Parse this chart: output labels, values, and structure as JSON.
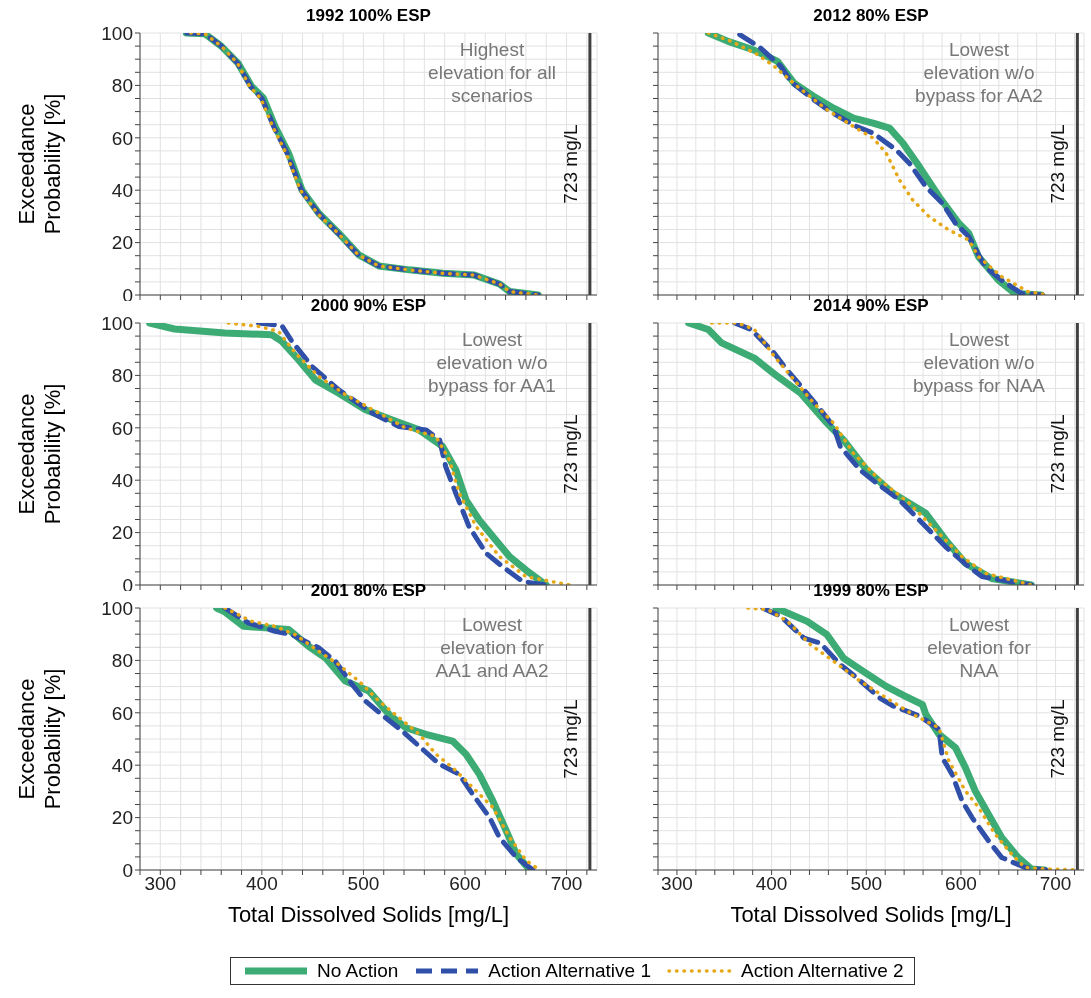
{
  "chart_data": [
    {
      "type": "line",
      "title": "1992 100% ESP",
      "ylabel": "Exceedance Probability [%]",
      "xlim": [
        280,
        730
      ],
      "ylim": [
        0,
        100
      ],
      "tick_labels": "y",
      "grid": true,
      "xticks": [
        {
          "value": 280,
          "label": null
        },
        300,
        {
          "value": 320,
          "label": null
        },
        {
          "value": 340,
          "label": null
        },
        {
          "value": 360,
          "label": null
        },
        {
          "value": 380,
          "label": null
        },
        400,
        {
          "value": 420,
          "label": null
        },
        {
          "value": 440,
          "label": null
        },
        {
          "value": 460,
          "label": null
        },
        {
          "value": 480,
          "label": null
        },
        500,
        {
          "value": 520,
          "label": null
        },
        {
          "value": 540,
          "label": null
        },
        {
          "value": 560,
          "label": null
        },
        {
          "value": 580,
          "label": null
        },
        600,
        {
          "value": 620,
          "label": null
        },
        {
          "value": 640,
          "label": null
        },
        {
          "value": 660,
          "label": null
        },
        {
          "value": 680,
          "label": null
        },
        700,
        {
          "value": 720,
          "label": null
        }
      ],
      "yticks": [
        0,
        {
          "value": 5,
          "label": null
        },
        {
          "value": 10,
          "label": null
        },
        {
          "value": 15,
          "label": null
        },
        20,
        {
          "value": 25,
          "label": null
        },
        {
          "value": 30,
          "label": null
        },
        {
          "value": 35,
          "label": null
        },
        40,
        {
          "value": 45,
          "label": null
        },
        {
          "value": 50,
          "label": null
        },
        {
          "value": 55,
          "label": null
        },
        60,
        {
          "value": 65,
          "label": null
        },
        {
          "value": 70,
          "label": null
        },
        {
          "value": 75,
          "label": null
        },
        80,
        {
          "value": 85,
          "label": null
        },
        {
          "value": 90,
          "label": null
        },
        {
          "value": 95,
          "label": null
        },
        100
      ],
      "annotations": [
        "Highest elevation for all scenarios"
      ],
      "ref_lines": [
        {
          "axis": "x",
          "value": 723,
          "label": "723 mg/L",
          "color": "#404040"
        }
      ],
      "series": [
        {
          "color": "#3dab74",
          "line_style": "solid",
          "x": [
            325.7,
            343.8,
            360,
            376.5,
            390,
            401.5,
            413,
            426.3,
            439.5,
            456,
            475.7,
            495.5,
            515.3,
            545,
            578,
            609.3,
            634,
            644,
            672
          ],
          "values": [
            100,
            99.7,
            95,
            88.5,
            79.6,
            75.2,
            64.3,
            54.1,
            40.1,
            31.2,
            23.6,
            15.3,
            11.1,
            9.6,
            8.3,
            7.6,
            4.2,
            1.3,
            0
          ]
        },
        {
          "color": "#2f4fa8",
          "line_style": "dashed",
          "x": [
            326,
            344,
            360,
            376,
            389,
            400,
            412,
            425,
            439,
            456,
            475,
            495,
            515,
            545,
            578,
            609,
            634,
            644,
            672
          ],
          "values": [
            100,
            99.7,
            95,
            88.5,
            79.6,
            75,
            64,
            54,
            40,
            31,
            23.6,
            15.3,
            11.1,
            9.6,
            8.3,
            7.6,
            4.2,
            1.3,
            0
          ]
        },
        {
          "color": "#e6a817",
          "line_style": "dotted",
          "x": [
            330,
            344,
            360,
            376,
            388,
            399,
            411,
            424,
            438,
            455,
            475,
            495,
            515,
            545,
            578,
            609,
            634,
            644,
            672
          ],
          "values": [
            100,
            99.7,
            95,
            88.5,
            79.6,
            75,
            64,
            54,
            40,
            31,
            23.6,
            15.3,
            11.1,
            9.6,
            8.3,
            7.6,
            4.2,
            1.3,
            0
          ]
        }
      ]
    },
    {
      "type": "line",
      "title": "2012 80% ESP",
      "xlim": [
        280,
        730
      ],
      "ylim": [
        0,
        100
      ],
      "tick_labels": false,
      "grid": true,
      "xticks": [
        {
          "value": 280,
          "label": null
        },
        300,
        {
          "value": 320,
          "label": null
        },
        {
          "value": 340,
          "label": null
        },
        {
          "value": 360,
          "label": null
        },
        {
          "value": 380,
          "label": null
        },
        400,
        {
          "value": 420,
          "label": null
        },
        {
          "value": 440,
          "label": null
        },
        {
          "value": 460,
          "label": null
        },
        {
          "value": 480,
          "label": null
        },
        500,
        {
          "value": 520,
          "label": null
        },
        {
          "value": 540,
          "label": null
        },
        {
          "value": 560,
          "label": null
        },
        {
          "value": 580,
          "label": null
        },
        600,
        {
          "value": 620,
          "label": null
        },
        {
          "value": 640,
          "label": null
        },
        {
          "value": 660,
          "label": null
        },
        {
          "value": 680,
          "label": null
        },
        700,
        {
          "value": 720,
          "label": null
        }
      ],
      "yticks": [
        0,
        {
          "value": 5,
          "label": null
        },
        {
          "value": 10,
          "label": null
        },
        {
          "value": 15,
          "label": null
        },
        20,
        {
          "value": 25,
          "label": null
        },
        {
          "value": 30,
          "label": null
        },
        {
          "value": 35,
          "label": null
        },
        40,
        {
          "value": 45,
          "label": null
        },
        {
          "value": 50,
          "label": null
        },
        {
          "value": 55,
          "label": null
        },
        60,
        {
          "value": 65,
          "label": null
        },
        {
          "value": 70,
          "label": null
        },
        {
          "value": 75,
          "label": null
        },
        80,
        {
          "value": 85,
          "label": null
        },
        {
          "value": 90,
          "label": null
        },
        {
          "value": 95,
          "label": null
        },
        100
      ],
      "annotations": [
        "Lowest elevation w/o bypass for AA2"
      ],
      "ref_lines": [
        {
          "axis": "x",
          "value": 723,
          "label": "723 mg/L",
          "color": "#404040"
        }
      ],
      "series": [
        {
          "color": "#3dab74",
          "line_style": "solid",
          "x": [
            333.2,
            354.1,
            382,
            406.3,
            423.7,
            444.6,
            465.5,
            486.4,
            507.2,
            524.6,
            538.6,
            556,
            576.8,
            597.7,
            608.2,
            618.6,
            639.5,
            656.9,
            684.7
          ],
          "values": [
            100,
            96.8,
            93.4,
            89.2,
            80.9,
            75.8,
            71.3,
            67.5,
            65.6,
            63.7,
            58,
            49,
            37.6,
            27.4,
            23.6,
            14.6,
            5.7,
            0.6,
            0
          ]
        },
        {
          "color": "#2f4fa8",
          "line_style": "dashed",
          "x": [
            366.3,
            387.2,
            409.8,
            420.2,
            444.6,
            462,
            489.8,
            507.2,
            531.6,
            545.5,
            562.9,
            580.3,
            594.2,
            608.2,
            625.6,
            643,
            663.8,
            686.5
          ],
          "values": [
            99.4,
            94.6,
            87.3,
            81.5,
            74.5,
            70,
            64.3,
            61.8,
            55.4,
            50.3,
            41.4,
            35,
            27.4,
            22.3,
            10.8,
            5.7,
            0.6,
            0
          ]
        },
        {
          "color": "#e6a817",
          "line_style": "dotted",
          "x": [
            333.2,
            357.6,
            385.4,
            402.8,
            427.2,
            458.5,
            486.4,
            507.2,
            521.1,
            535.1,
            549,
            566.4,
            587.3,
            608.2,
            618.6,
            643,
            670.8,
            691.7
          ],
          "values": [
            100,
            96.8,
            91.7,
            87.3,
            79.6,
            70.7,
            64.3,
            59.9,
            54.1,
            43.9,
            36.3,
            29.9,
            24.8,
            21,
            14.6,
            7,
            1.3,
            0
          ]
        }
      ]
    },
    {
      "type": "line",
      "title": "2000 90% ESP",
      "ylabel": "Exceedance Probability [%]",
      "xlim": [
        280,
        730
      ],
      "ylim": [
        0,
        100
      ],
      "tick_labels": "y",
      "grid": true,
      "xticks": [
        {
          "value": 280,
          "label": null
        },
        300,
        {
          "value": 320,
          "label": null
        },
        {
          "value": 340,
          "label": null
        },
        {
          "value": 360,
          "label": null
        },
        {
          "value": 380,
          "label": null
        },
        400,
        {
          "value": 420,
          "label": null
        },
        {
          "value": 440,
          "label": null
        },
        {
          "value": 460,
          "label": null
        },
        {
          "value": 480,
          "label": null
        },
        500,
        {
          "value": 520,
          "label": null
        },
        {
          "value": 540,
          "label": null
        },
        {
          "value": 560,
          "label": null
        },
        {
          "value": 580,
          "label": null
        },
        600,
        {
          "value": 620,
          "label": null
        },
        {
          "value": 640,
          "label": null
        },
        {
          "value": 660,
          "label": null
        },
        {
          "value": 680,
          "label": null
        },
        700,
        {
          "value": 720,
          "label": null
        }
      ],
      "yticks": [
        0,
        {
          "value": 5,
          "label": null
        },
        {
          "value": 10,
          "label": null
        },
        {
          "value": 15,
          "label": null
        },
        20,
        {
          "value": 25,
          "label": null
        },
        {
          "value": 30,
          "label": null
        },
        {
          "value": 35,
          "label": null
        },
        40,
        {
          "value": 45,
          "label": null
        },
        {
          "value": 50,
          "label": null
        },
        {
          "value": 55,
          "label": null
        },
        60,
        {
          "value": 65,
          "label": null
        },
        {
          "value": 70,
          "label": null
        },
        {
          "value": 75,
          "label": null
        },
        80,
        {
          "value": 85,
          "label": null
        },
        {
          "value": 90,
          "label": null
        },
        {
          "value": 95,
          "label": null
        },
        100
      ],
      "annotations": [
        "Lowest elevation w/o bypass for AA1"
      ],
      "ref_lines": [
        {
          "axis": "x",
          "value": 723,
          "label": "723 mg/L",
          "color": "#404040"
        }
      ],
      "series": [
        {
          "color": "#3dab74",
          "line_style": "solid",
          "x": [
            289.5,
            314,
            363.6,
            409.8,
            419.7,
            436,
            452.6,
            475.7,
            502,
            528.5,
            554.8,
            578,
            591,
            601,
            614,
            627.4,
            644,
            660,
            680
          ],
          "values": [
            100,
            97.7,
            96.2,
            95.5,
            93,
            86,
            78.3,
            73.2,
            66.9,
            63,
            59.2,
            52.9,
            43.9,
            32.5,
            24.8,
            18.5,
            10.8,
            5.7,
            0
          ]
        },
        {
          "color": "#2f4fa8",
          "line_style": "dashed",
          "x": [
            396.6,
            419.7,
            429.6,
            449.3,
            475.7,
            508.7,
            535,
            561.5,
            575,
            581,
            591,
            604,
            620.8,
            637,
            657,
            680
          ],
          "values": [
            100,
            99,
            93,
            83.4,
            74.5,
            65.6,
            60.5,
            59.2,
            55.4,
            45.2,
            35,
            22.3,
            12.1,
            7,
            1.3,
            0
          ]
        },
        {
          "color": "#e6a817",
          "line_style": "dotted",
          "x": [
            367,
            396.6,
            416.4,
            433,
            456,
            482.4,
            515.3,
            541.7,
            571.4,
            584.5,
            594.4,
            611,
            634,
            660,
            703
          ],
          "values": [
            100,
            98.7,
            96.8,
            88.5,
            79.6,
            72.6,
            65.6,
            59.9,
            56.7,
            47.8,
            35,
            22.3,
            10.8,
            3.2,
            0
          ]
        }
      ]
    },
    {
      "type": "line",
      "title": "2014 90% ESP",
      "xlim": [
        280,
        730
      ],
      "ylim": [
        0,
        100
      ],
      "tick_labels": false,
      "grid": true,
      "xticks": [
        {
          "value": 280,
          "label": null
        },
        300,
        {
          "value": 320,
          "label": null
        },
        {
          "value": 340,
          "label": null
        },
        {
          "value": 360,
          "label": null
        },
        {
          "value": 380,
          "label": null
        },
        400,
        {
          "value": 420,
          "label": null
        },
        {
          "value": 440,
          "label": null
        },
        {
          "value": 460,
          "label": null
        },
        {
          "value": 480,
          "label": null
        },
        500,
        {
          "value": 520,
          "label": null
        },
        {
          "value": 540,
          "label": null
        },
        {
          "value": 560,
          "label": null
        },
        {
          "value": 580,
          "label": null
        },
        600,
        {
          "value": 620,
          "label": null
        },
        {
          "value": 640,
          "label": null
        },
        {
          "value": 660,
          "label": null
        },
        {
          "value": 680,
          "label": null
        },
        700,
        {
          "value": 720,
          "label": null
        }
      ],
      "yticks": [
        0,
        {
          "value": 5,
          "label": null
        },
        {
          "value": 10,
          "label": null
        },
        {
          "value": 15,
          "label": null
        },
        20,
        {
          "value": 25,
          "label": null
        },
        {
          "value": 30,
          "label": null
        },
        {
          "value": 35,
          "label": null
        },
        40,
        {
          "value": 45,
          "label": null
        },
        {
          "value": 50,
          "label": null
        },
        {
          "value": 55,
          "label": null
        },
        60,
        {
          "value": 65,
          "label": null
        },
        {
          "value": 70,
          "label": null
        },
        {
          "value": 75,
          "label": null
        },
        80,
        {
          "value": 85,
          "label": null
        },
        {
          "value": 90,
          "label": null
        },
        {
          "value": 95,
          "label": null
        },
        100
      ],
      "annotations": [
        "Lowest elevation w/o bypass for NAA"
      ],
      "ref_lines": [
        {
          "axis": "x",
          "value": 723,
          "label": "723 mg/L",
          "color": "#404040"
        }
      ],
      "series": [
        {
          "color": "#3dab74",
          "line_style": "solid",
          "x": [
            312.4,
            333.2,
            347.1,
            381.7,
            406.3,
            430.7,
            458.5,
            475.9,
            500.3,
            528.1,
            562.9,
            583.8,
            604.7,
            632.5,
            674.3
          ],
          "values": [
            100,
            97.5,
            92.4,
            86.6,
            79.6,
            73.2,
            61.8,
            55.4,
            43.9,
            35,
            27.4,
            17.2,
            8.3,
            2.5,
            0
          ]
        },
        {
          "color": "#2f4fa8",
          "line_style": "dashed",
          "x": [
            361,
            378.5,
            402.8,
            413.3,
            434.2,
            451.6,
            465.5,
            472.5,
            493.4,
            510.8,
            535.1,
            549,
            569.9,
            583.8,
            608.2,
            622.1,
            674.3
          ],
          "values": [
            100,
            97.5,
            88.5,
            83.4,
            74.5,
            66.9,
            60.5,
            52.9,
            43.9,
            38.9,
            32.5,
            27.4,
            19.7,
            14.6,
            7,
            3.2,
            0
          ]
        },
        {
          "color": "#e6a817",
          "line_style": "dotted",
          "x": [
            336.7,
            364.5,
            381.9,
            402.8,
            423.7,
            444.6,
            465.5,
            486.4,
            514.2,
            545.5,
            576.8,
            601.2,
            625.6,
            674.3
          ],
          "values": [
            100,
            100,
            97.5,
            87.3,
            78.3,
            69.4,
            61.8,
            50.3,
            40.1,
            31.2,
            19.7,
            10.8,
            4.5,
            0
          ]
        }
      ]
    },
    {
      "type": "line",
      "title": "2001 80% ESP",
      "xlabel": "Total Dissolved Solids [mg/L]",
      "ylabel": "Exceedance Probability [%]",
      "xlim": [
        280,
        730
      ],
      "ylim": [
        0,
        100
      ],
      "grid": true,
      "legend": "bottom",
      "xticks": [
        {
          "value": 280,
          "label": null
        },
        300,
        {
          "value": 320,
          "label": null
        },
        {
          "value": 340,
          "label": null
        },
        {
          "value": 360,
          "label": null
        },
        {
          "value": 380,
          "label": null
        },
        400,
        {
          "value": 420,
          "label": null
        },
        {
          "value": 440,
          "label": null
        },
        {
          "value": 460,
          "label": null
        },
        {
          "value": 480,
          "label": null
        },
        500,
        {
          "value": 520,
          "label": null
        },
        {
          "value": 540,
          "label": null
        },
        {
          "value": 560,
          "label": null
        },
        {
          "value": 580,
          "label": null
        },
        600,
        {
          "value": 620,
          "label": null
        },
        {
          "value": 640,
          "label": null
        },
        {
          "value": 660,
          "label": null
        },
        {
          "value": 680,
          "label": null
        },
        700,
        {
          "value": 720,
          "label": null
        }
      ],
      "yticks": [
        0,
        {
          "value": 5,
          "label": null
        },
        {
          "value": 10,
          "label": null
        },
        {
          "value": 15,
          "label": null
        },
        20,
        {
          "value": 25,
          "label": null
        },
        {
          "value": 30,
          "label": null
        },
        {
          "value": 35,
          "label": null
        },
        40,
        {
          "value": 45,
          "label": null
        },
        {
          "value": 50,
          "label": null
        },
        {
          "value": 55,
          "label": null
        },
        60,
        {
          "value": 65,
          "label": null
        },
        {
          "value": 70,
          "label": null
        },
        {
          "value": 75,
          "label": null
        },
        80,
        {
          "value": 85,
          "label": null
        },
        {
          "value": 90,
          "label": null
        },
        {
          "value": 95,
          "label": null
        },
        100
      ],
      "annotations": [
        "Lowest elevation for AA1 and AA2"
      ],
      "ref_lines": [
        {
          "axis": "x",
          "value": 723,
          "label": "723 mg/L",
          "color": "#404040"
        }
      ],
      "series": [
        {
          "name": "No Action",
          "color": "#3dab74",
          "line_style": "solid",
          "x": [
            355.4,
            363.6,
            381.8,
            406.5,
            426.3,
            446,
            462.5,
            482.3,
            505.4,
            525.2,
            541.7,
            561.5,
            587.8,
            601,
            614.2,
            627.4,
            640.6,
            650.5,
            663.7
          ],
          "values": [
            100,
            98.5,
            93,
            92.4,
            91.8,
            85.4,
            81,
            72.1,
            68.3,
            59.4,
            54.3,
            51.8,
            49.2,
            44.2,
            36.5,
            26.4,
            15,
            6.1,
            0
          ]
        },
        {
          "name": "Action Alternative 1",
          "color": "#2f4fa8",
          "line_style": "dashed",
          "x": [
            363.6,
            386.7,
            413.1,
            429.6,
            455.9,
            472.4,
            488.9,
            502,
            521.9,
            538.4,
            558.2,
            574.7,
            594.4,
            607.6,
            624.1,
            634,
            650.5,
            667
          ],
          "values": [
            100,
            94.3,
            91.1,
            89.8,
            84.8,
            79.7,
            70.8,
            64.5,
            58.1,
            53,
            46.1,
            40.4,
            36.5,
            28.9,
            20.1,
            12.4,
            4.8,
            0
          ]
        },
        {
          "name": "Action Alternative 2",
          "color": "#e6a817",
          "line_style": "dotted",
          "x": [
            363.6,
            390,
            413,
            432.9,
            456,
            475.7,
            495.5,
            515.3,
            539,
            555,
            571.4,
            587.8,
            607.6,
            627.4,
            643.9,
            660.4,
            673.5
          ],
          "values": [
            100,
            94.9,
            93,
            89.8,
            83.5,
            78.4,
            72.1,
            64.5,
            56.9,
            51.8,
            44.2,
            39.1,
            31.5,
            23.9,
            12.4,
            3.6,
            0
          ]
        }
      ]
    },
    {
      "type": "line",
      "title": "1999 80% ESP",
      "xlabel": "Total Dissolved Solids [mg/L]",
      "xlim": [
        280,
        730
      ],
      "ylim": [
        0,
        100
      ],
      "tick_labels": "x",
      "grid": true,
      "xticks": [
        {
          "value": 280,
          "label": null
        },
        300,
        {
          "value": 320,
          "label": null
        },
        {
          "value": 340,
          "label": null
        },
        {
          "value": 360,
          "label": null
        },
        {
          "value": 380,
          "label": null
        },
        400,
        {
          "value": 420,
          "label": null
        },
        {
          "value": 440,
          "label": null
        },
        {
          "value": 460,
          "label": null
        },
        {
          "value": 480,
          "label": null
        },
        500,
        {
          "value": 520,
          "label": null
        },
        {
          "value": 540,
          "label": null
        },
        {
          "value": 560,
          "label": null
        },
        {
          "value": 580,
          "label": null
        },
        600,
        {
          "value": 620,
          "label": null
        },
        {
          "value": 640,
          "label": null
        },
        {
          "value": 660,
          "label": null
        },
        {
          "value": 680,
          "label": null
        },
        700,
        {
          "value": 720,
          "label": null
        }
      ],
      "yticks": [
        0,
        {
          "value": 5,
          "label": null
        },
        {
          "value": 10,
          "label": null
        },
        {
          "value": 15,
          "label": null
        },
        20,
        {
          "value": 25,
          "label": null
        },
        {
          "value": 30,
          "label": null
        },
        {
          "value": 35,
          "label": null
        },
        40,
        {
          "value": 45,
          "label": null
        },
        {
          "value": 50,
          "label": null
        },
        {
          "value": 55,
          "label": null
        },
        60,
        {
          "value": 65,
          "label": null
        },
        {
          "value": 70,
          "label": null
        },
        {
          "value": 75,
          "label": null
        },
        80,
        {
          "value": 85,
          "label": null
        },
        {
          "value": 90,
          "label": null
        },
        {
          "value": 95,
          "label": null
        },
        100
      ],
      "annotations": [
        "Lowest elevation for NAA"
      ],
      "ref_lines": [
        {
          "axis": "x",
          "value": 723,
          "label": "723 mg/L",
          "color": "#404040"
        }
      ],
      "series": [
        {
          "color": "#3dab74",
          "line_style": "solid",
          "x": [
            404.6,
            416.8,
            437.6,
            458.5,
            475.9,
            496.8,
            521.1,
            542,
            559.4,
            562.9,
            576.8,
            594.2,
            604.7,
            615.1,
            629,
            643,
            660.4,
            674.3,
            688.2
          ],
          "values": [
            100,
            98.1,
            94.9,
            89.8,
            80.9,
            75.8,
            70.1,
            66.2,
            63.1,
            59.4,
            51.8,
            46.7,
            39.1,
            30.2,
            21.3,
            12.4,
            4.8,
            0.4,
            0
          ]
        },
        {
          "color": "#2f4fa8",
          "line_style": "dashed",
          "x": [
            390.7,
            409.8,
            434.2,
            451.6,
            472.5,
            489.8,
            514.2,
            528.1,
            556,
            576.8,
            580.3,
            590.7,
            601.2,
            611.6,
            629,
            643,
            667.3,
            690
          ],
          "values": [
            100,
            96.8,
            88.5,
            86.6,
            78.4,
            73.4,
            65.7,
            62.6,
            58.8,
            53.7,
            42.9,
            36.5,
            26.4,
            20.1,
            11.2,
            4.8,
            1,
            0
          ]
        },
        {
          "color": "#e6a817",
          "line_style": "dotted",
          "x": [
            375,
            395.9,
            416.8,
            441.1,
            465.5,
            493.4,
            521.1,
            549,
            576.8,
            587.3,
            604.7,
            618.6,
            636,
            653.4,
            667.3,
            688.2,
            724.7
          ],
          "values": [
            100,
            99.4,
            94.9,
            86,
            79.7,
            72.1,
            65.7,
            59.4,
            54.3,
            41.6,
            30.2,
            23.9,
            13.7,
            6.1,
            1,
            0.4,
            0
          ]
        }
      ]
    }
  ]
}
